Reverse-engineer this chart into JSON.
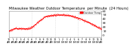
{
  "title": "Milwaukee Weather Outdoor Temperature  per Minute  (24 Hours)",
  "title_fontsize": 3.8,
  "line_color": "#ff0000",
  "legend_color": "#ff0000",
  "legend_label": "Outdoor Temp",
  "background_color": "#ffffff",
  "ylim": [
    -5,
    60
  ],
  "yticks": [
    0,
    10,
    20,
    30,
    40,
    50,
    60
  ],
  "ytick_labels": [
    "0",
    "10",
    "20",
    "30",
    "40",
    "50",
    "60"
  ],
  "ylabel_fontsize": 3.0,
  "xlabel_fontsize": 2.5,
  "marker_size": 0.4,
  "vline_color": "#bbbbbb",
  "hours_vlines": [
    6,
    12,
    18
  ],
  "xlim": [
    0,
    24
  ],
  "hour_ticks": [
    0,
    1,
    2,
    3,
    4,
    5,
    6,
    7,
    8,
    9,
    10,
    11,
    12,
    13,
    14,
    15,
    16,
    17,
    18,
    19,
    20,
    21,
    22,
    23,
    24
  ]
}
